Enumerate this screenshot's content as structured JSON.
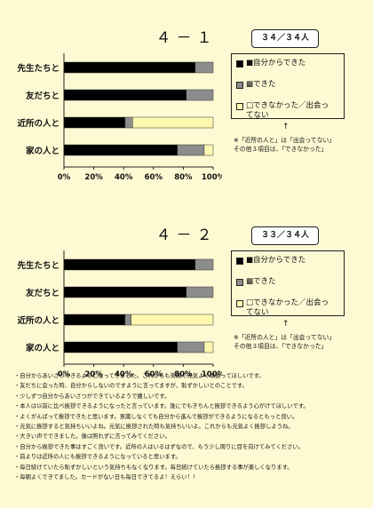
{
  "charts": [
    {
      "title": "４－１",
      "count": "３４／３４人",
      "arrow": "↑",
      "note": "※「近所の人と」は「出会ってない」\nその他３項目は、「できなかった」"
    },
    {
      "title": "４－２",
      "count": "３３／３４人",
      "arrow": "↑",
      "note": "※「近所の人と」は「出会ってない」\nその他３項目は、「できなかった」"
    }
  ],
  "chart_data": [
    {
      "type": "bar",
      "orientation": "horizontal",
      "stacked": true,
      "categories": [
        "先生たちと",
        "友だちと",
        "近所の人と",
        "家の人と"
      ],
      "series": [
        {
          "name": "■自分からできた",
          "color": "#000000",
          "values": [
            88,
            82,
            41,
            76
          ]
        },
        {
          "name": "▩できた",
          "color": "#8c8c8c",
          "values": [
            12,
            18,
            5,
            18
          ]
        },
        {
          "name": "□できなかった／出会ってない",
          "color": "#fdf7b0",
          "values": [
            0,
            0,
            54,
            6
          ]
        }
      ],
      "xticks": [
        "0%",
        "20%",
        "40%",
        "60%",
        "80%",
        "100%"
      ],
      "xlim": [
        0,
        100
      ],
      "grid": false,
      "legend": "right"
    },
    {
      "type": "bar",
      "orientation": "horizontal",
      "stacked": true,
      "categories": [
        "先生たちと",
        "友だちと",
        "近所の人と",
        "家の人と"
      ],
      "series": [
        {
          "name": "■自分からできた",
          "color": "#000000",
          "values": [
            88,
            82,
            41,
            76
          ]
        },
        {
          "name": "▩できた",
          "color": "#8c8c8c",
          "values": [
            12,
            18,
            4,
            18
          ]
        },
        {
          "name": "□できなかった／出会ってない",
          "color": "#fdf7b0",
          "values": [
            0,
            0,
            55,
            6
          ]
        }
      ],
      "xticks": [
        "0%",
        "20%",
        "40%",
        "60%",
        "80%",
        "100%"
      ],
      "xlim": [
        0,
        100
      ],
      "grid": false,
      "legend": "right"
    }
  ],
  "comments": [
    "・自分からあいさつできるようになってきました。これからも笑顔で元気よく頑張ってほしいです。",
    "・友だちに会った時、自分からしないのですように言ってますが、恥ずかしいとのことです。",
    "・少しずつ自分からあいさつができているようで嬉しいです。",
    "・本人は以前に比べ挨拶できるようになったと言っています。誰にでもきちんと挨拶できるよう心がけてほしいです。",
    "・よくがんばって挨拶できたと思います。意識しなくても自分から進んで挨拶ができるようになるともっと良い。",
    "・元気に挨拶すると気持ちいいよね。元気に挨拶された時も気持ちいいよ。これからも元気よく挨拶しようね。",
    "・大きい声でできました。後は照れずに言ってみてください。",
    "・自分から挨拶できた事はすごく良いです。近所の人はいるはずなので、もう少し周りに目を向けてみてください。",
    "・前よりは近所の人にも挨拶できるようになっていると思います。",
    "・毎日続けていたら恥ずかしいという気持ちもなくなります。毎日続けていたら挨拶する事が楽しくなります。",
    "・毎朝よくできてました。カードがない日も毎日できてるよ！えらい！！"
  ]
}
